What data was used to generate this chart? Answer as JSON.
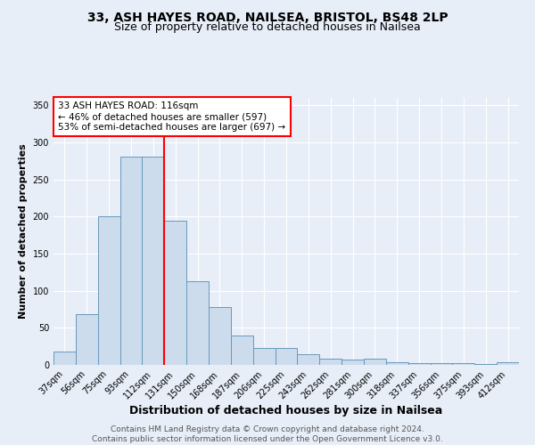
{
  "title1": "33, ASH HAYES ROAD, NAILSEA, BRISTOL, BS48 2LP",
  "title2": "Size of property relative to detached houses in Nailsea",
  "xlabel": "Distribution of detached houses by size in Nailsea",
  "ylabel": "Number of detached properties",
  "categories": [
    "37sqm",
    "56sqm",
    "75sqm",
    "93sqm",
    "112sqm",
    "131sqm",
    "150sqm",
    "168sqm",
    "187sqm",
    "206sqm",
    "225sqm",
    "243sqm",
    "262sqm",
    "281sqm",
    "300sqm",
    "318sqm",
    "337sqm",
    "356sqm",
    "375sqm",
    "393sqm",
    "412sqm"
  ],
  "values": [
    18,
    68,
    200,
    281,
    281,
    195,
    113,
    78,
    40,
    23,
    23,
    14,
    8,
    7,
    8,
    4,
    3,
    2,
    2,
    1,
    4
  ],
  "bar_color": "#ccdcec",
  "bar_edge_color": "#6699bb",
  "vline_x": 4.5,
  "vline_color": "red",
  "annotation_text": "33 ASH HAYES ROAD: 116sqm\n← 46% of detached houses are smaller (597)\n53% of semi-detached houses are larger (697) →",
  "annotation_box_color": "white",
  "annotation_box_edge_color": "red",
  "ylim": [
    0,
    360
  ],
  "yticks": [
    0,
    50,
    100,
    150,
    200,
    250,
    300,
    350
  ],
  "bg_color": "#e8eef8",
  "footnote": "Contains HM Land Registry data © Crown copyright and database right 2024.\nContains public sector information licensed under the Open Government Licence v3.0.",
  "title_fontsize": 10,
  "subtitle_fontsize": 9,
  "xlabel_fontsize": 9,
  "ylabel_fontsize": 8,
  "tick_fontsize": 7,
  "annot_fontsize": 7.5,
  "footnote_fontsize": 6.5
}
